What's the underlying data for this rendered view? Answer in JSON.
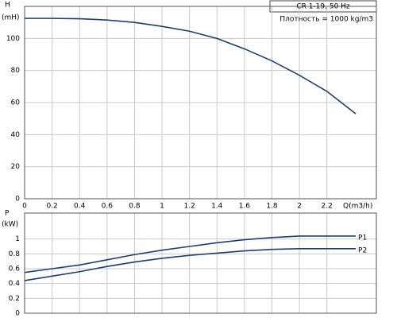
{
  "chart_data": [
    {
      "type": "line",
      "annotation": [
        "CR 1-19, 50 Hz",
        "Плотность = 1000 kg/m3"
      ],
      "ylabel": "H",
      "yunit": "(mH)",
      "xlabel": "Q(m3/h)",
      "x": [
        0,
        0.2,
        0.4,
        0.6,
        0.8,
        1.0,
        1.2,
        1.4,
        1.6,
        1.8,
        2.0,
        2.2,
        2.41
      ],
      "series": [
        {
          "color": "#1b3f6e",
          "values": [
            112.5,
            112.5,
            112.3,
            111.5,
            110,
            107.5,
            104.5,
            100,
            93.5,
            86,
            77,
            67,
            53
          ]
        }
      ],
      "xlim": [
        0,
        2.56
      ],
      "xticks": [
        0,
        0.2,
        0.4,
        0.6,
        0.8,
        1,
        1.2,
        1.4,
        1.6,
        1.8,
        2,
        2.2
      ],
      "ylim": [
        0,
        120
      ],
      "yticks": [
        0,
        20,
        40,
        60,
        80,
        100
      ],
      "grid": true
    },
    {
      "type": "line",
      "ylabel": "P",
      "yunit": "(kW)",
      "x": [
        0,
        0.2,
        0.4,
        0.6,
        0.8,
        1.0,
        1.2,
        1.4,
        1.6,
        1.8,
        2.0,
        2.2,
        2.41
      ],
      "series": [
        {
          "name": "P1",
          "color": "#1b3f6e",
          "values": [
            0.55,
            0.6,
            0.65,
            0.72,
            0.79,
            0.85,
            0.9,
            0.95,
            0.99,
            1.02,
            1.04,
            1.04,
            1.04
          ]
        },
        {
          "name": "P2",
          "color": "#1b3f6e",
          "values": [
            0.44,
            0.5,
            0.56,
            0.63,
            0.69,
            0.74,
            0.78,
            0.81,
            0.84,
            0.86,
            0.87,
            0.87,
            0.87
          ]
        }
      ],
      "xlim": [
        0,
        2.56
      ],
      "ylim": [
        0,
        1.35
      ],
      "yticks": [
        0,
        0.2,
        0.4,
        0.6,
        0.8,
        1
      ],
      "grid": true
    }
  ]
}
